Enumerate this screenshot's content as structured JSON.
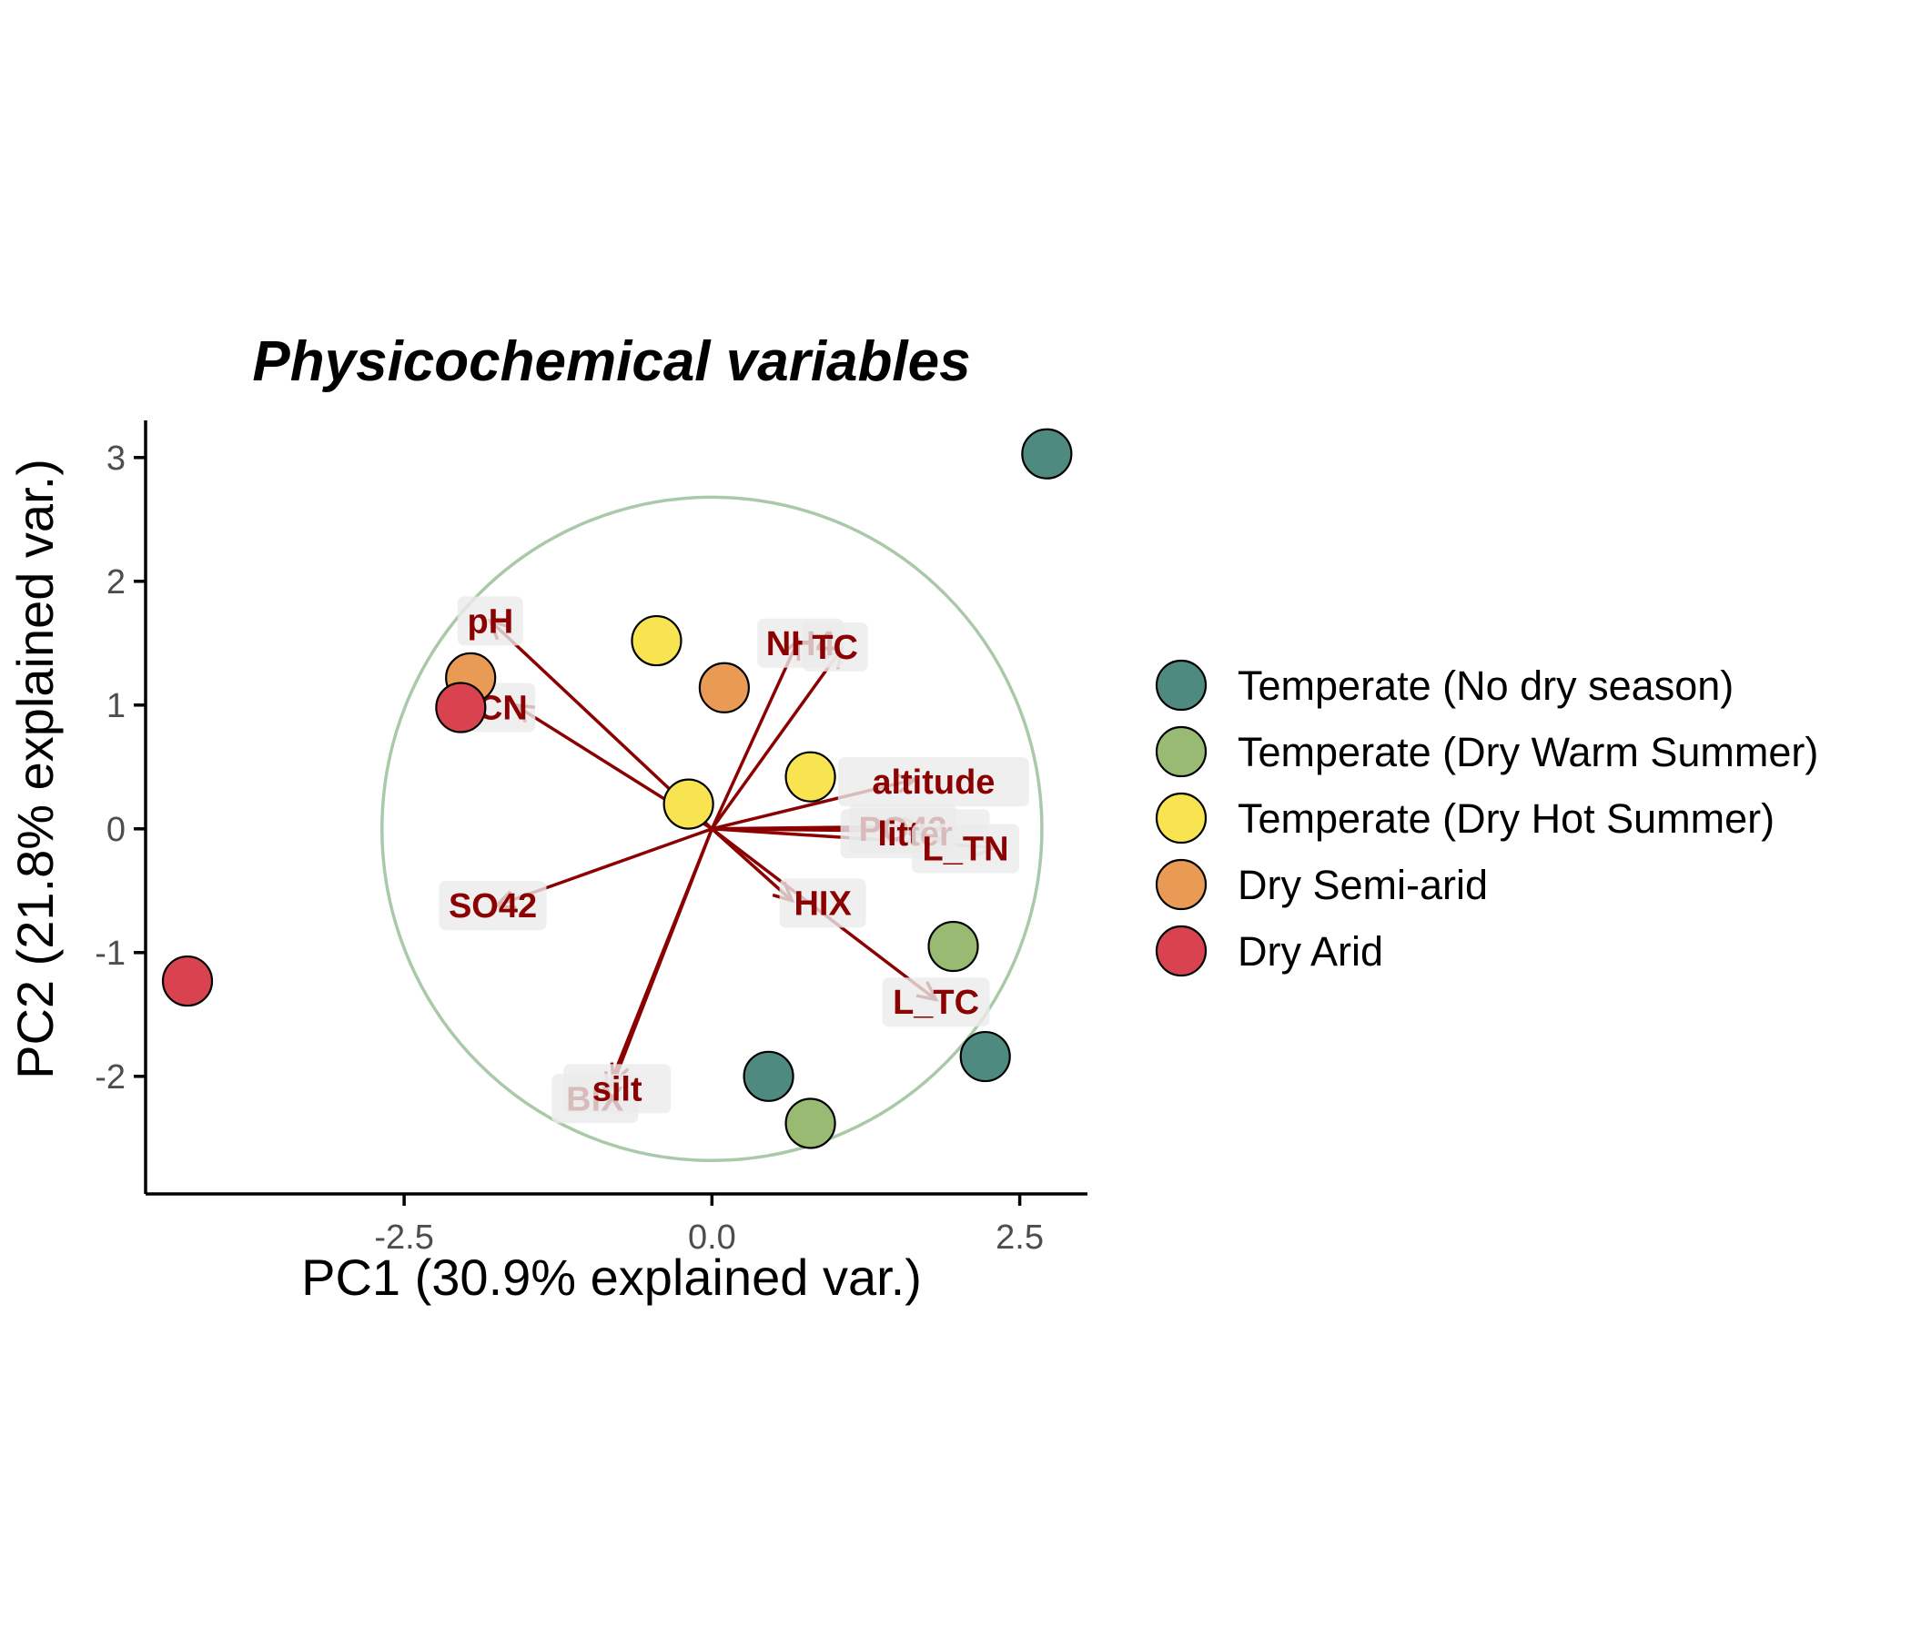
{
  "chart_data": {
    "type": "scatter",
    "title": "Physicochemical variables",
    "xlabel": "PC1 (30.9% explained var.)",
    "ylabel": "PC2 (21.8% explained var.)",
    "xlim": [
      -4.6,
      3.05
    ],
    "ylim": [
      -2.95,
      3.3
    ],
    "x_ticks": [
      -2.5,
      0.0,
      2.5
    ],
    "x_tick_labels": [
      "-2.5",
      "0.0",
      "2.5"
    ],
    "y_ticks": [
      -2,
      -1,
      0,
      1,
      2,
      3
    ],
    "y_tick_labels": [
      "-2",
      "-1",
      "0",
      "1",
      "2",
      "3"
    ],
    "grid": false,
    "legend_position": "right",
    "correlation_circle": {
      "center": [
        0,
        0
      ],
      "radius_x": 2.68,
      "radius_y": 2.68,
      "color": "#a9c9a9"
    },
    "series": [
      {
        "name": "Temperate (No dry season)",
        "color": "#4e8a80",
        "points": [
          [
            2.72,
            3.03
          ],
          [
            2.22,
            -1.84
          ],
          [
            0.46,
            -2.0
          ]
        ]
      },
      {
        "name": "Temperate (Dry Warm Summer)",
        "color": "#98ba72",
        "points": [
          [
            1.96,
            -0.95
          ],
          [
            0.8,
            -2.38
          ]
        ]
      },
      {
        "name": "Temperate (Dry Hot Summer)",
        "color": "#f8e350",
        "points": [
          [
            -0.45,
            1.52
          ],
          [
            0.8,
            0.42
          ],
          [
            -0.19,
            0.2
          ]
        ]
      },
      {
        "name": "Dry Semi-arid",
        "color": "#e99b55",
        "points": [
          [
            0.1,
            1.14
          ],
          [
            -1.96,
            1.22
          ]
        ]
      },
      {
        "name": "Dry Arid",
        "color": "#d9434f",
        "points": [
          [
            -2.04,
            0.98
          ],
          [
            -4.26,
            -1.23
          ]
        ]
      }
    ],
    "loadings": {
      "color": "#8b0000",
      "arrows": [
        {
          "name": "pH",
          "x": -1.8,
          "y": 1.68,
          "label_x": -1.8,
          "label_y": 1.68
        },
        {
          "name": "CN",
          "x": -1.6,
          "y": 1.0,
          "label_x": -1.7,
          "label_y": 0.98
        },
        {
          "name": "NH4",
          "x": 0.7,
          "y": 1.52,
          "label_x": 0.72,
          "label_y": 1.5
        },
        {
          "name": "TC",
          "x": 1.05,
          "y": 1.45,
          "label_x": 1.0,
          "label_y": 1.47
        },
        {
          "name": "altitude",
          "x": 1.65,
          "y": 0.4,
          "label_x": 1.8,
          "label_y": 0.38
        },
        {
          "name": "PO43",
          "x": 1.7,
          "y": 0.02,
          "label_x": 1.55,
          "label_y": 0.0
        },
        {
          "name": "litter",
          "x": 1.75,
          "y": -0.02,
          "label_x": 1.65,
          "label_y": -0.04
        },
        {
          "name": "L_TN",
          "x": 2.3,
          "y": -0.15,
          "label_x": 2.06,
          "label_y": -0.16
        },
        {
          "name": "HIX",
          "x": 0.65,
          "y": -0.58,
          "label_x": 0.9,
          "label_y": -0.6
        },
        {
          "name": "L_TC",
          "x": 1.82,
          "y": -1.38,
          "label_x": 1.82,
          "label_y": -1.4
        },
        {
          "name": "SO42",
          "x": -1.75,
          "y": -0.62,
          "label_x": -1.78,
          "label_y": -0.62
        },
        {
          "name": "BIX",
          "x": -0.85,
          "y": -2.12,
          "label_x": -0.95,
          "label_y": -2.18
        },
        {
          "name": "silt",
          "x": -0.8,
          "y": -2.05,
          "label_x": -0.77,
          "label_y": -2.1
        }
      ]
    }
  }
}
